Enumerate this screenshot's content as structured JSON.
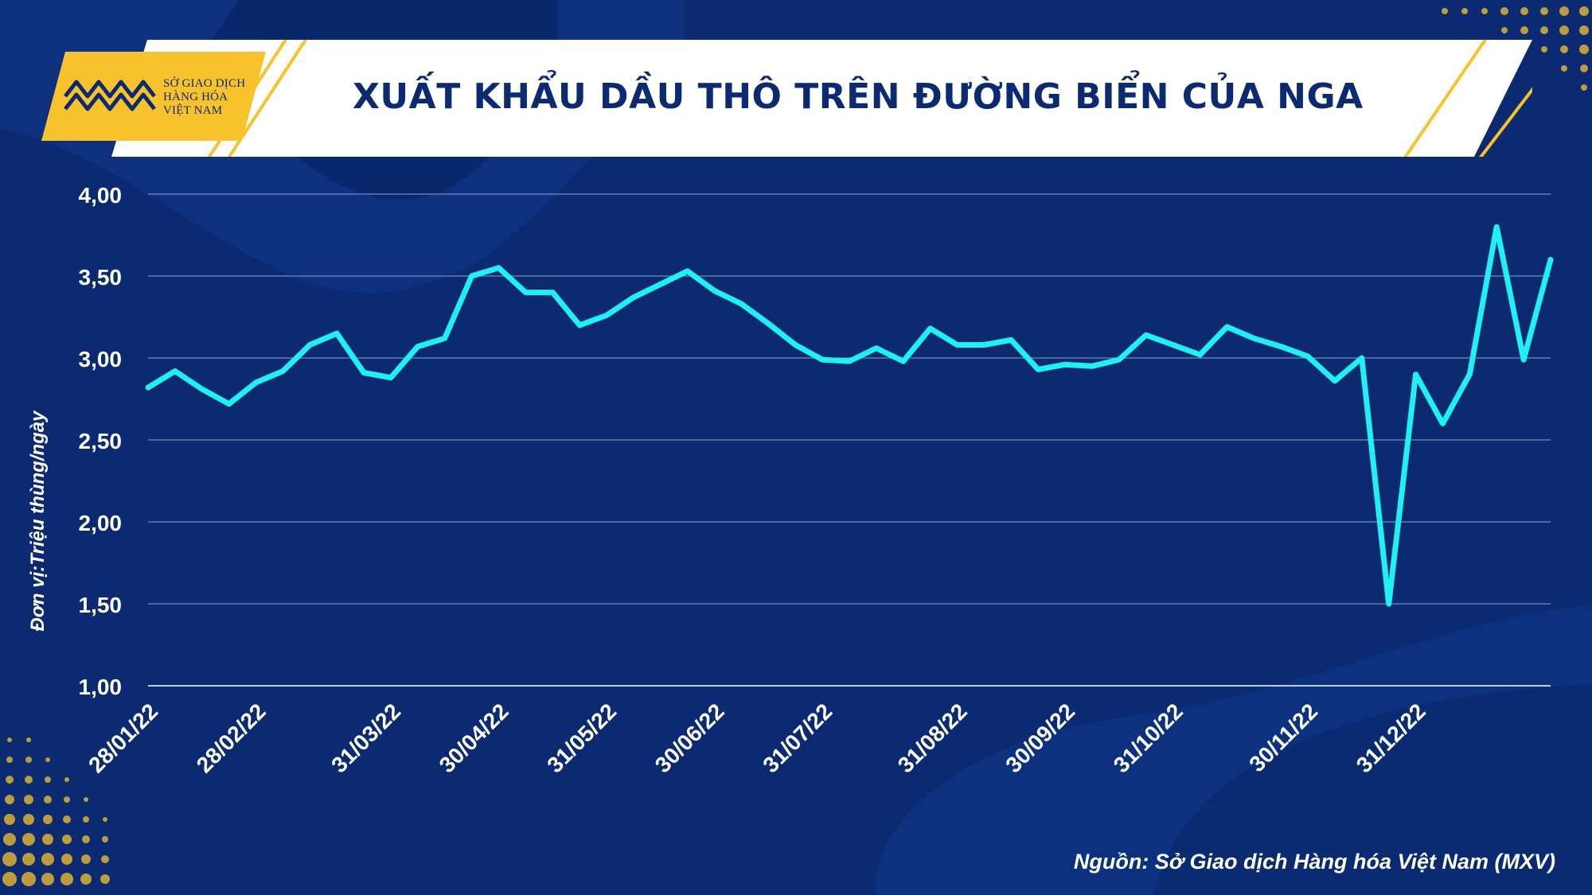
{
  "header": {
    "title": "XUẤT KHẨU DẦU THÔ TRÊN ĐƯỜNG BIỂN CỦA NGA",
    "logo_lines": [
      "SỞ GIAO DỊCH",
      "HÀNG HÓA",
      "VIỆT NAM"
    ]
  },
  "footer": {
    "source": "Nguồn: Sở Giao dịch Hàng hóa Việt Nam (MXV)"
  },
  "colors": {
    "background": "#0b2a72",
    "line": "#1ff0f2",
    "accent": "#f7c22c",
    "banner": "#ffffff",
    "text": "#ffffff"
  },
  "chart_data": {
    "type": "line",
    "title": "XUẤT KHẨU DẦU THÔ TRÊN ĐƯỜNG BIỂN CỦA NGA",
    "ylabel": "Đơn vị:Triệu thùng/ngày",
    "xlabel": "",
    "ylim": [
      1.0,
      4.0
    ],
    "yticks": [
      "1,00",
      "1,50",
      "2,00",
      "2,50",
      "3,00",
      "3,50",
      "4,00"
    ],
    "grid": "horizontal",
    "legend": "none",
    "x_tick_labels": [
      "28/01/22",
      "28/02/22",
      "31/03/22",
      "30/04/22",
      "31/05/22",
      "30/06/22",
      "31/07/22",
      "31/08/22",
      "30/09/22",
      "31/10/22",
      "30/11/22",
      "31/12/22"
    ],
    "x_tick_index": [
      0,
      4,
      9,
      13,
      17,
      21,
      25,
      30,
      34,
      38,
      43,
      47
    ],
    "values": [
      2.82,
      2.92,
      2.81,
      2.72,
      2.85,
      2.92,
      3.08,
      3.15,
      2.91,
      2.88,
      3.07,
      3.12,
      3.5,
      3.55,
      3.4,
      3.4,
      3.2,
      3.26,
      3.37,
      3.45,
      3.53,
      3.41,
      3.33,
      3.21,
      3.08,
      2.99,
      2.98,
      3.06,
      2.98,
      3.18,
      3.08,
      3.08,
      3.11,
      2.93,
      2.96,
      2.95,
      2.99,
      3.14,
      3.08,
      3.02,
      3.19,
      3.12,
      3.07,
      3.01,
      2.86,
      3.0,
      1.5,
      2.9,
      2.6,
      2.9,
      3.8,
      2.99,
      3.6
    ]
  }
}
